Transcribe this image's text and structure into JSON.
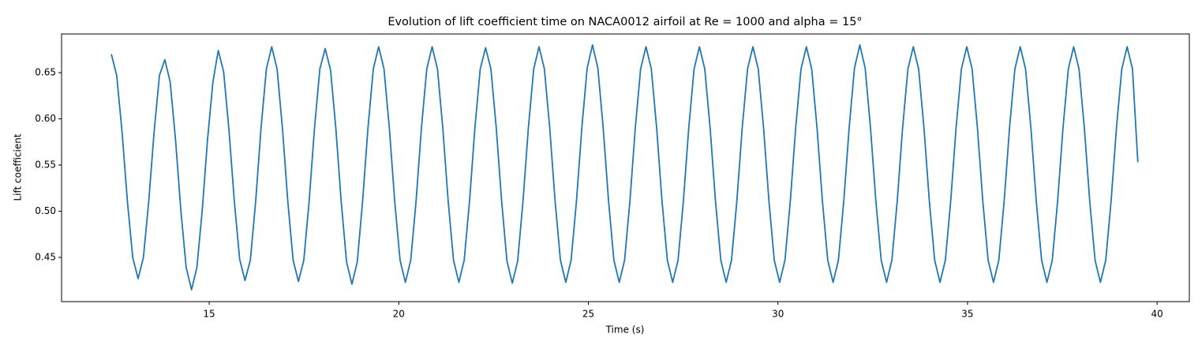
{
  "chart_data": {
    "type": "line",
    "title": "Evolution of lift coefficient time on NACA0012 airfoil at Re = 1000 and alpha = 15°",
    "x_label": "Time (s)",
    "y_label": "Lift coefficient",
    "color": "#1f77b4",
    "xlim": [
      11.107,
      40.85
    ],
    "ylim": [
      0.4021,
      0.6919
    ],
    "xticks": [
      15,
      20,
      25,
      30,
      35,
      40
    ],
    "yticks": [
      0.45,
      {
        "value": 0.5,
        "label": "0.50"
      },
      0.55,
      {
        "value": 0.6,
        "label": "0.60"
      },
      0.65
    ],
    "x": [
      12.42,
      12.561,
      12.702,
      12.843,
      12.984,
      13.125,
      13.266,
      13.407,
      13.548,
      13.689,
      13.83,
      13.971,
      14.112,
      14.253,
      14.394,
      14.535,
      14.676,
      14.817,
      14.958,
      15.099,
      15.24,
      15.381,
      15.522,
      15.663,
      15.804,
      15.945,
      16.086,
      16.227,
      16.368,
      16.509,
      16.65,
      16.791,
      16.932,
      17.073,
      17.214,
      17.355,
      17.496,
      17.637,
      17.778,
      17.919,
      18.06,
      18.201,
      18.342,
      18.483,
      18.624,
      18.765,
      18.906,
      19.047,
      19.188,
      19.329,
      19.47,
      19.611,
      19.752,
      19.893,
      20.034,
      20.175,
      20.316,
      20.457,
      20.598,
      20.739,
      20.88,
      21.021,
      21.162,
      21.303,
      21.444,
      21.585,
      21.726,
      21.867,
      22.008,
      22.149,
      22.29,
      22.431,
      22.572,
      22.713,
      22.854,
      22.995,
      23.136,
      23.277,
      23.418,
      23.559,
      23.7,
      23.841,
      23.982,
      24.123,
      24.264,
      24.405,
      24.546,
      24.687,
      24.828,
      24.969,
      25.11,
      25.251,
      25.392,
      25.533,
      25.674,
      25.815,
      25.956,
      26.097,
      26.238,
      26.379,
      26.52,
      26.661,
      26.802,
      26.943,
      27.084,
      27.225,
      27.366,
      27.507,
      27.648,
      27.789,
      27.93,
      28.071,
      28.212,
      28.353,
      28.494,
      28.635,
      28.776,
      28.917,
      29.058,
      29.199,
      29.34,
      29.481,
      29.622,
      29.763,
      29.904,
      30.045,
      30.186,
      30.327,
      30.468,
      30.609,
      30.75,
      30.891,
      31.032,
      31.173,
      31.314,
      31.455,
      31.596,
      31.737,
      31.878,
      32.019,
      32.16,
      32.301,
      32.442,
      32.583,
      32.724,
      32.865,
      33.006,
      33.147,
      33.288,
      33.429,
      33.57,
      33.711,
      33.852,
      33.993,
      34.134,
      34.275,
      34.416,
      34.557,
      34.698,
      34.839,
      34.98,
      35.121,
      35.262,
      35.403,
      35.544,
      35.685,
      35.826,
      35.967,
      36.108,
      36.249,
      36.39,
      36.531,
      36.672,
      36.813,
      36.954,
      37.095,
      37.236,
      37.377,
      37.518,
      37.659,
      37.8,
      37.941,
      38.082,
      38.223,
      38.364,
      38.505,
      38.646,
      38.787,
      38.928,
      39.069,
      39.21,
      39.351,
      39.492
    ],
    "values": [
      0.67,
      0.647,
      0.586,
      0.511,
      0.45,
      0.427,
      0.45,
      0.511,
      0.586,
      0.647,
      0.664,
      0.64,
      0.578,
      0.501,
      0.439,
      0.415,
      0.439,
      0.501,
      0.578,
      0.64,
      0.674,
      0.651,
      0.588,
      0.511,
      0.448,
      0.425,
      0.447,
      0.511,
      0.59,
      0.654,
      0.678,
      0.654,
      0.59,
      0.511,
      0.447,
      0.424,
      0.447,
      0.511,
      0.59,
      0.654,
      0.676,
      0.653,
      0.589,
      0.51,
      0.445,
      0.421,
      0.445,
      0.511,
      0.59,
      0.654,
      0.678,
      0.654,
      0.59,
      0.511,
      0.447,
      0.423,
      0.447,
      0.511,
      0.59,
      0.654,
      0.678,
      0.654,
      0.59,
      0.511,
      0.447,
      0.423,
      0.447,
      0.511,
      0.59,
      0.654,
      0.677,
      0.654,
      0.59,
      0.511,
      0.446,
      0.422,
      0.446,
      0.511,
      0.59,
      0.654,
      0.678,
      0.654,
      0.59,
      0.511,
      0.447,
      0.423,
      0.447,
      0.511,
      0.59,
      0.655,
      0.68,
      0.655,
      0.59,
      0.511,
      0.447,
      0.423,
      0.447,
      0.511,
      0.59,
      0.654,
      0.678,
      0.654,
      0.59,
      0.511,
      0.447,
      0.423,
      0.447,
      0.511,
      0.59,
      0.654,
      0.678,
      0.654,
      0.59,
      0.511,
      0.447,
      0.423,
      0.447,
      0.511,
      0.59,
      0.654,
      0.678,
      0.654,
      0.59,
      0.511,
      0.447,
      0.423,
      0.447,
      0.511,
      0.59,
      0.654,
      0.678,
      0.654,
      0.59,
      0.511,
      0.447,
      0.423,
      0.447,
      0.511,
      0.59,
      0.655,
      0.68,
      0.655,
      0.59,
      0.511,
      0.447,
      0.423,
      0.447,
      0.511,
      0.59,
      0.654,
      0.678,
      0.654,
      0.59,
      0.511,
      0.447,
      0.423,
      0.447,
      0.511,
      0.59,
      0.654,
      0.678,
      0.654,
      0.59,
      0.511,
      0.447,
      0.423,
      0.447,
      0.511,
      0.59,
      0.654,
      0.678,
      0.654,
      0.59,
      0.511,
      0.447,
      0.423,
      0.447,
      0.511,
      0.59,
      0.654,
      0.678,
      0.654,
      0.59,
      0.511,
      0.447,
      0.423,
      0.447,
      0.511,
      0.59,
      0.654,
      0.678,
      0.654,
      0.553
    ]
  }
}
